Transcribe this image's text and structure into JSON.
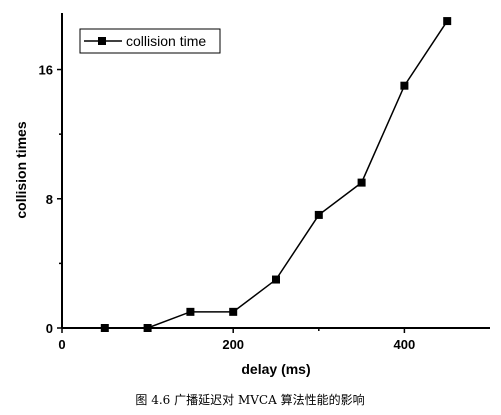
{
  "chart_data": {
    "type": "line",
    "xlabel": "delay (ms)",
    "ylabel": "collision times",
    "xlim": [
      0,
      500
    ],
    "ylim": [
      0,
      19.5
    ],
    "xticks": [
      0,
      200,
      400
    ],
    "yticks": [
      0,
      8,
      16
    ],
    "series": [
      {
        "name": "collision time",
        "marker": "square",
        "color": "#000000",
        "x": [
          50,
          100,
          150,
          200,
          250,
          300,
          350,
          400,
          450
        ],
        "y": [
          0,
          0,
          1,
          1,
          3,
          7,
          9,
          15,
          19
        ]
      }
    ],
    "legend_position": "top-left",
    "grid": false
  },
  "caption": "图 4.6 广播延迟对 MVCA 算法性能的影响"
}
